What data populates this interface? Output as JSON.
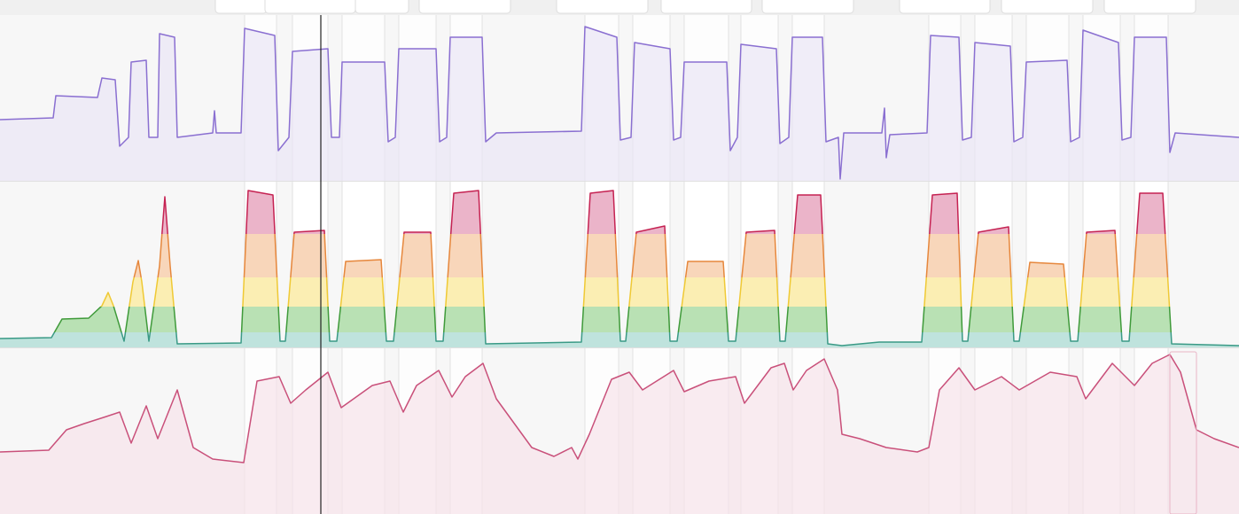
{
  "intervals": [
    [
      276,
      312
    ],
    [
      330,
      370
    ],
    [
      386,
      434
    ],
    [
      450,
      492
    ],
    [
      508,
      544
    ],
    [
      660,
      698
    ],
    [
      714,
      756
    ],
    [
      772,
      822
    ],
    [
      836,
      878
    ],
    [
      894,
      930
    ],
    [
      1048,
      1084
    ],
    [
      1100,
      1142
    ],
    [
      1158,
      1206
    ],
    [
      1222,
      1264
    ],
    [
      1280,
      1318
    ]
  ],
  "chart_data": [
    {
      "type": "line",
      "color": "#8a6fd1",
      "fill": "#e9e5f5",
      "xlim": [
        0,
        1398
      ],
      "ylim": [
        0,
        187
      ],
      "x": [
        0,
        60,
        63,
        110,
        115,
        130,
        135,
        145,
        148,
        165,
        168,
        178,
        180,
        197,
        200,
        240,
        242,
        244,
        272,
        276,
        310,
        314,
        326,
        330,
        370,
        374,
        383,
        386,
        434,
        438,
        446,
        450,
        492,
        496,
        504,
        508,
        544,
        548,
        560,
        656,
        660,
        696,
        700,
        712,
        716,
        756,
        760,
        768,
        772,
        820,
        824,
        832,
        836,
        876,
        880,
        890,
        894,
        928,
        932,
        946,
        948,
        952,
        995,
        998,
        1000,
        1004,
        1046,
        1050,
        1082,
        1086,
        1096,
        1100,
        1140,
        1144,
        1154,
        1158,
        1204,
        1208,
        1218,
        1222,
        1262,
        1266,
        1276,
        1280,
        1316,
        1320,
        1326,
        1398
      ],
      "values": [
        69,
        71,
        96,
        94,
        116,
        114,
        39,
        49,
        134,
        136,
        49,
        49,
        166,
        162,
        49,
        54,
        79,
        54,
        54,
        172,
        164,
        34,
        49,
        146,
        149,
        49,
        49,
        134,
        134,
        44,
        49,
        149,
        149,
        44,
        49,
        162,
        162,
        44,
        54,
        56,
        174,
        162,
        46,
        49,
        156,
        149,
        46,
        49,
        134,
        134,
        34,
        49,
        154,
        149,
        42,
        49,
        162,
        162,
        44,
        49,
        2,
        54,
        54,
        82,
        26,
        52,
        54,
        164,
        162,
        46,
        49,
        156,
        152,
        44,
        49,
        134,
        136,
        44,
        49,
        170,
        156,
        46,
        49,
        162,
        162,
        32,
        54,
        49
      ]
    },
    {
      "type": "zones",
      "xlim": [
        0,
        1398
      ],
      "ylim": [
        0,
        187
      ],
      "zones": [
        {
          "from": 0,
          "to": 17,
          "fill": "#bfe3dd",
          "stroke": "#3a9a86"
        },
        {
          "from": 17,
          "to": 46,
          "fill": "#b9e1b4",
          "stroke": "#3f9a3a"
        },
        {
          "from": 46,
          "to": 79,
          "fill": "#fbeeb3",
          "stroke": "#efc935"
        },
        {
          "from": 79,
          "to": 128,
          "fill": "#f8d6ba",
          "stroke": "#e6873c"
        },
        {
          "from": 128,
          "to": 187,
          "fill": "#ebb4c9",
          "stroke": "#c52252"
        }
      ],
      "x": [
        0,
        58,
        70,
        100,
        115,
        122,
        128,
        140,
        150,
        156,
        160,
        168,
        180,
        186,
        192,
        200,
        272,
        280,
        308,
        316,
        322,
        332,
        366,
        372,
        380,
        390,
        430,
        436,
        444,
        456,
        486,
        492,
        500,
        512,
        540,
        548,
        656,
        666,
        692,
        700,
        706,
        718,
        750,
        756,
        764,
        776,
        816,
        822,
        830,
        842,
        874,
        880,
        886,
        900,
        926,
        934,
        950,
        992,
        1040,
        1052,
        1080,
        1086,
        1092,
        1104,
        1138,
        1144,
        1150,
        1162,
        1200,
        1208,
        1216,
        1226,
        1258,
        1266,
        1274,
        1286,
        1312,
        1322,
        1398
      ],
      "values": [
        10,
        11,
        32,
        33,
        47,
        62,
        47,
        7,
        74,
        98,
        74,
        7,
        92,
        170,
        92,
        4,
        5,
        177,
        172,
        7,
        7,
        130,
        132,
        7,
        7,
        97,
        99,
        7,
        7,
        130,
        130,
        7,
        7,
        174,
        177,
        4,
        6,
        174,
        177,
        7,
        7,
        130,
        137,
        7,
        7,
        97,
        97,
        7,
        7,
        130,
        132,
        7,
        7,
        172,
        172,
        4,
        2,
        6,
        6,
        172,
        174,
        7,
        7,
        130,
        136,
        7,
        7,
        96,
        94,
        7,
        7,
        130,
        132,
        7,
        7,
        174,
        174,
        4,
        2
      ]
    },
    {
      "type": "line",
      "color": "#c9507a",
      "fill": "#f6e3e9",
      "xlim": [
        0,
        1398
      ],
      "ylim": [
        0,
        187
      ],
      "x": [
        0,
        55,
        75,
        95,
        120,
        135,
        148,
        165,
        178,
        200,
        218,
        240,
        275,
        290,
        315,
        328,
        345,
        370,
        385,
        420,
        440,
        455,
        470,
        495,
        510,
        525,
        545,
        560,
        600,
        625,
        645,
        652,
        665,
        690,
        710,
        725,
        760,
        772,
        800,
        830,
        840,
        870,
        885,
        895,
        910,
        930,
        945,
        950,
        970,
        1000,
        1035,
        1048,
        1060,
        1082,
        1100,
        1130,
        1150,
        1185,
        1215,
        1225,
        1255,
        1280,
        1300,
        1320,
        1332,
        1350,
        1370,
        1398
      ],
      "values": [
        70,
        72,
        95,
        102,
        110,
        115,
        80,
        122,
        85,
        140,
        75,
        62,
        58,
        150,
        155,
        125,
        140,
        160,
        120,
        145,
        150,
        115,
        145,
        162,
        132,
        155,
        170,
        130,
        75,
        65,
        75,
        62,
        90,
        152,
        160,
        140,
        162,
        138,
        150,
        155,
        125,
        165,
        170,
        140,
        162,
        175,
        140,
        90,
        85,
        75,
        70,
        75,
        140,
        165,
        140,
        155,
        140,
        160,
        155,
        130,
        170,
        145,
        170,
        180,
        160,
        95,
        85,
        75
      ]
    }
  ]
}
